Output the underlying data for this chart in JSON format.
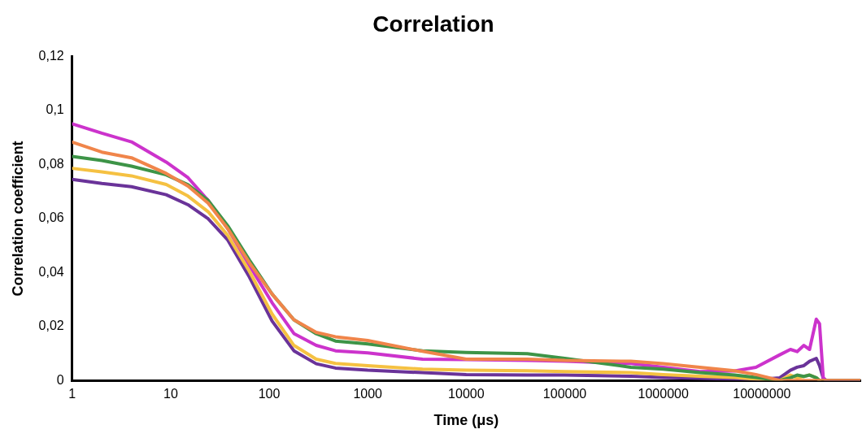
{
  "chart_data": {
    "type": "line",
    "title": "Correlation",
    "xlabel": "Time (μs)",
    "ylabel": "Correlation coefficient",
    "log": "x",
    "grid": false,
    "legend": false,
    "marker": "none",
    "line_style": "solid",
    "x": [
      1,
      2,
      4,
      9,
      15,
      24,
      38,
      63,
      107,
      178,
      300,
      470,
      1000,
      3600,
      10000,
      41600,
      100000,
      468000,
      1000000,
      2350000,
      5300000,
      8700000,
      15200000,
      19500000,
      22800000,
      26700000,
      30500000,
      35700000,
      38500000,
      42000000,
      45000000,
      100000000
    ],
    "xlim": [
      1,
      100000000
    ],
    "xticks": [
      1,
      10,
      100,
      1000,
      10000,
      100000,
      1000000,
      10000000
    ],
    "ylim": [
      0,
      0.12
    ],
    "yticks": [
      0,
      {
        "value": 0.02,
        "label": "0,02"
      },
      {
        "value": 0.04,
        "label": "0,04"
      },
      {
        "value": 0.06,
        "label": "0,06"
      },
      {
        "value": 0.08,
        "label": "0,08"
      },
      {
        "value": 0.1,
        "label": "0,1"
      },
      {
        "value": 0.12,
        "label": "0,12"
      }
    ],
    "series": [
      {
        "color": "#f0854a",
        "values": [
          0.0883,
          0.0846,
          0.0825,
          0.0767,
          0.072,
          0.0657,
          0.0562,
          0.0436,
          0.032,
          0.0225,
          0.0178,
          0.0162,
          0.0148,
          0.0108,
          0.0079,
          0.0079,
          0.0074,
          0.0071,
          0.0062,
          0.0049,
          0.0036,
          0.0022,
          0,
          0,
          0,
          0,
          0,
          0,
          0,
          0,
          0,
          0
        ]
      },
      {
        "color": "#3d9447",
        "values": [
          0.083,
          0.0815,
          0.0794,
          0.0762,
          0.0725,
          0.0667,
          0.0573,
          0.0446,
          0.032,
          0.0225,
          0.0173,
          0.0146,
          0.0135,
          0.011,
          0.0104,
          0.0099,
          0.0082,
          0.0049,
          0.0042,
          0.0029,
          0.002,
          0.0011,
          0,
          0.001,
          0.002,
          0.0015,
          0.002,
          0.001,
          0,
          0,
          0,
          0
        ]
      },
      {
        "color": "#f5c142",
        "values": [
          0.0786,
          0.0773,
          0.0758,
          0.0726,
          0.0683,
          0.0625,
          0.0537,
          0.0404,
          0.0246,
          0.013,
          0.0079,
          0.0063,
          0.0055,
          0.0042,
          0.0038,
          0.0036,
          0.0033,
          0.0029,
          0.0022,
          0.0016,
          0.0011,
          0.0005,
          0,
          0.002,
          0.001,
          0.0015,
          0.002,
          0.001,
          0,
          null,
          null,
          null
        ]
      },
      {
        "color": "#cc33cc",
        "values": [
          0.0951,
          0.0916,
          0.0884,
          0.0809,
          0.0751,
          0.0667,
          0.0562,
          0.0426,
          0.0288,
          0.0174,
          0.013,
          0.011,
          0.0102,
          0.0079,
          0.0077,
          0.0074,
          0.0071,
          0.0063,
          0.0049,
          0.0033,
          0.0035,
          0.0049,
          0.0095,
          0.0115,
          0.0107,
          0.013,
          0.0115,
          0.0227,
          0.021,
          0.001,
          0,
          0
        ]
      },
      {
        "color": "#6a3399",
        "values": [
          0.0745,
          0.073,
          0.0718,
          0.0688,
          0.0651,
          0.0599,
          0.052,
          0.0383,
          0.022,
          0.011,
          0.0062,
          0.0046,
          0.0038,
          0.0029,
          0.0022,
          0.002,
          0.002,
          0.0016,
          0.0011,
          0.0008,
          0.0005,
          0.0003,
          0.001,
          0.0038,
          0.0049,
          0.0055,
          0.0071,
          0.0082,
          0.0055,
          0.0008,
          0,
          0
        ]
      }
    ]
  }
}
